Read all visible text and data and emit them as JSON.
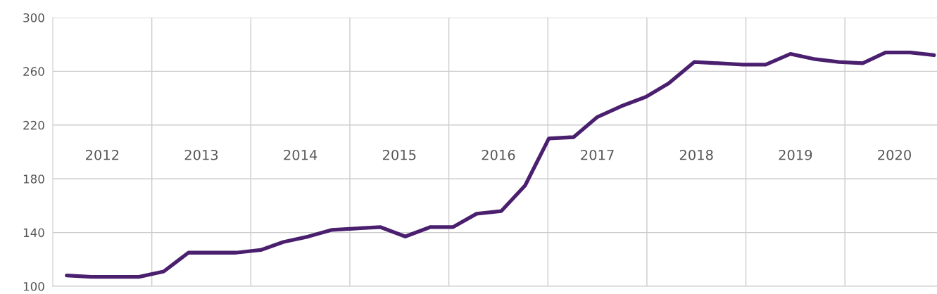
{
  "chart_data": {
    "type": "line",
    "x": [
      2012.14,
      2012.39,
      2012.64,
      2012.87,
      2013.12,
      2013.37,
      2013.61,
      2013.85,
      2014.1,
      2014.33,
      2014.58,
      2014.82,
      2015.06,
      2015.31,
      2015.56,
      2015.81,
      2016.04,
      2016.28,
      2016.53,
      2016.77,
      2017.01,
      2017.26,
      2017.5,
      2017.74,
      2017.99,
      2018.22,
      2018.48,
      2018.72,
      2018.97,
      2019.2,
      2019.45,
      2019.7,
      2019.94,
      2020.18,
      2020.41,
      2020.66,
      2020.9
    ],
    "series": [
      {
        "color": "#4a1f6e",
        "values": [
          108,
          107,
          107,
          107,
          111,
          125,
          125,
          125,
          127,
          133,
          137,
          142,
          143,
          144,
          137,
          144,
          144,
          154,
          156,
          175,
          210,
          211,
          226,
          234,
          241,
          251,
          267,
          266,
          265,
          265,
          273,
          269,
          267,
          266,
          274,
          274,
          272
        ]
      }
    ],
    "xlim": [
      2012,
      2020.93
    ],
    "xticks": [
      {
        "value": 2012.5,
        "label": "2012"
      },
      {
        "value": 2013,
        "label": null
      },
      {
        "value": 2013.5,
        "label": "2013"
      },
      {
        "value": 2014,
        "label": null
      },
      {
        "value": 2014.5,
        "label": "2014"
      },
      {
        "value": 2015,
        "label": null
      },
      {
        "value": 2015.5,
        "label": "2015"
      },
      {
        "value": 2016,
        "label": null
      },
      {
        "value": 2016.5,
        "label": "2016"
      },
      {
        "value": 2017,
        "label": null
      },
      {
        "value": 2017.5,
        "label": "2017"
      },
      {
        "value": 2018,
        "label": null
      },
      {
        "value": 2018.5,
        "label": "2018"
      },
      {
        "value": 2019,
        "label": null
      },
      {
        "value": 2019.5,
        "label": "2019"
      },
      {
        "value": 2020,
        "label": null
      },
      {
        "value": 2020.5,
        "label": "2020"
      }
    ],
    "ylim": [
      100,
      300
    ],
    "yticks": [
      100,
      140,
      180,
      220,
      260,
      300
    ],
    "grid": true,
    "marker": "none",
    "line_style": "solid"
  }
}
